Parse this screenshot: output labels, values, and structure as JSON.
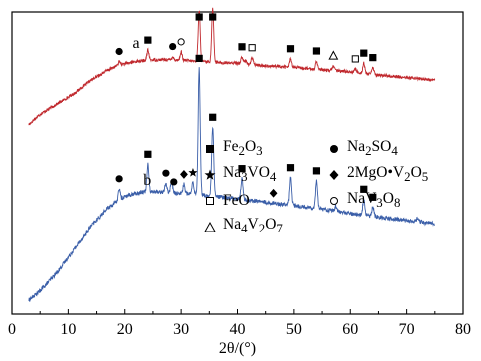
{
  "chart_data": {
    "type": "line",
    "xlabel": "2θ/(°)",
    "xlim": [
      0,
      80
    ],
    "x_ticks": [
      "0",
      "10",
      "20",
      "30",
      "40",
      "50",
      "60",
      "70",
      "80"
    ],
    "y_ticks_shown": false,
    "colors": {
      "a": "#c0282d",
      "b": "#3a5ea8"
    },
    "series": [
      {
        "label": "a",
        "base": [
          [
            3,
            0.18
          ],
          [
            5,
            0.24
          ],
          [
            8,
            0.3
          ],
          [
            11,
            0.36
          ],
          [
            14,
            0.44
          ],
          [
            17,
            0.5
          ],
          [
            19,
            0.53
          ],
          [
            22,
            0.55
          ],
          [
            25,
            0.56
          ],
          [
            28,
            0.56
          ],
          [
            31,
            0.555
          ],
          [
            33,
            0.55
          ],
          [
            36,
            0.545
          ],
          [
            40,
            0.54
          ],
          [
            45,
            0.525
          ],
          [
            50,
            0.515
          ],
          [
            55,
            0.5
          ],
          [
            60,
            0.49
          ],
          [
            65,
            0.47
          ],
          [
            70,
            0.455
          ],
          [
            75,
            0.44
          ]
        ],
        "peaks": [
          [
            19.0,
            0.02
          ],
          [
            24.1,
            0.06
          ],
          [
            28.5,
            0.02
          ],
          [
            30.0,
            0.05
          ],
          [
            33.2,
            0.3
          ],
          [
            35.6,
            0.32
          ],
          [
            40.8,
            0.04
          ],
          [
            41.4,
            0.02
          ],
          [
            42.6,
            0.04
          ],
          [
            49.4,
            0.05
          ],
          [
            54.0,
            0.05
          ],
          [
            57.0,
            0.03
          ],
          [
            60.9,
            0.02
          ],
          [
            62.4,
            0.06
          ],
          [
            64.0,
            0.04
          ]
        ]
      },
      {
        "label": "b",
        "base": [
          [
            3,
            0.0
          ],
          [
            5,
            0.04
          ],
          [
            8,
            0.12
          ],
          [
            11,
            0.22
          ],
          [
            14,
            0.32
          ],
          [
            17,
            0.4
          ],
          [
            20,
            0.45
          ],
          [
            23,
            0.47
          ],
          [
            26,
            0.47
          ],
          [
            29,
            0.465
          ],
          [
            32,
            0.46
          ],
          [
            36,
            0.45
          ],
          [
            40,
            0.44
          ],
          [
            45,
            0.425
          ],
          [
            50,
            0.41
          ],
          [
            55,
            0.395
          ],
          [
            60,
            0.375
          ],
          [
            65,
            0.36
          ],
          [
            70,
            0.345
          ],
          [
            75,
            0.33
          ]
        ],
        "peaks": [
          [
            19.0,
            0.05
          ],
          [
            24.1,
            0.12
          ],
          [
            27.3,
            0.04
          ],
          [
            28.3,
            0.05
          ],
          [
            30.5,
            0.04
          ],
          [
            32.1,
            0.05
          ],
          [
            33.2,
            0.55
          ],
          [
            35.6,
            0.3
          ],
          [
            40.8,
            0.09
          ],
          [
            49.4,
            0.12
          ],
          [
            54.0,
            0.12
          ],
          [
            57.4,
            0.02
          ],
          [
            62.4,
            0.07
          ],
          [
            64.0,
            0.04
          ],
          [
            72.0,
            0.02
          ]
        ]
      }
    ],
    "legend": [
      {
        "marker": "filled-square",
        "html": "Fe<sub>2</sub>O<sub>3</sub>"
      },
      {
        "marker": "filled-circle",
        "html": "Na<sub>2</sub>SO<sub>4</sub>"
      },
      {
        "marker": "star",
        "html": "Na<sub>3</sub>VO<sub>4</sub>"
      },
      {
        "marker": "filled-diamond",
        "html": "2MgO•V<sub>2</sub>O<sub>5</sub>"
      },
      {
        "marker": "open-square",
        "html": "FeO"
      },
      {
        "marker": "open-circle",
        "html": "NaV<sub>3</sub>O<sub>8</sub>"
      },
      {
        "marker": "open-triangle",
        "html": "Na<sub>4</sub>V<sub>2</sub>O<sub>7</sub>"
      }
    ],
    "markers": {
      "a": [
        {
          "x": 19.0,
          "marker": "filled-circle"
        },
        {
          "x": 24.1,
          "marker": "filled-square"
        },
        {
          "x": 28.5,
          "marker": "filled-circle"
        },
        {
          "x": 30.0,
          "marker": "open-circle"
        },
        {
          "x": 33.2,
          "marker": "filled-square"
        },
        {
          "x": 35.6,
          "marker": "filled-square"
        },
        {
          "x": 40.8,
          "marker": "filled-square"
        },
        {
          "x": 42.6,
          "marker": "open-square"
        },
        {
          "x": 49.4,
          "marker": "filled-square"
        },
        {
          "x": 54.0,
          "marker": "filled-square"
        },
        {
          "x": 57.0,
          "marker": "open-triangle"
        },
        {
          "x": 60.9,
          "marker": "open-square"
        },
        {
          "x": 62.4,
          "marker": "filled-square"
        },
        {
          "x": 64.0,
          "marker": "filled-square"
        }
      ],
      "b": [
        {
          "x": 19.0,
          "marker": "filled-circle"
        },
        {
          "x": 24.1,
          "marker": "filled-square"
        },
        {
          "x": 27.3,
          "marker": "filled-circle"
        },
        {
          "x": 28.7,
          "marker": "filled-circle"
        },
        {
          "x": 30.5,
          "marker": "filled-diamond"
        },
        {
          "x": 32.1,
          "marker": "star"
        },
        {
          "x": 33.2,
          "marker": "filled-square"
        },
        {
          "x": 35.6,
          "marker": "filled-square"
        },
        {
          "x": 40.8,
          "marker": "filled-square"
        },
        {
          "x": 46.4,
          "marker": "filled-diamond"
        },
        {
          "x": 49.4,
          "marker": "filled-square"
        },
        {
          "x": 54.0,
          "marker": "filled-square"
        },
        {
          "x": 62.4,
          "marker": "filled-square"
        },
        {
          "x": 64.0,
          "marker": "filled-square"
        }
      ]
    }
  }
}
